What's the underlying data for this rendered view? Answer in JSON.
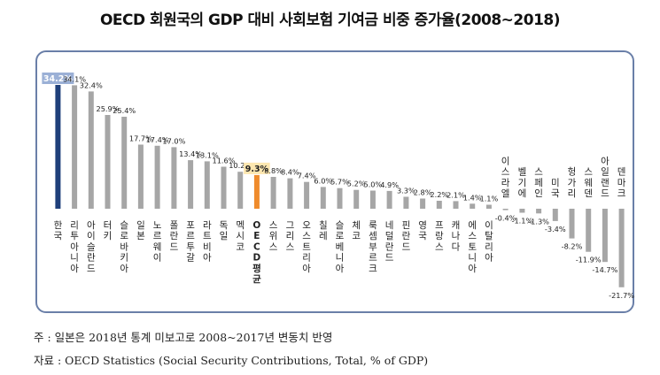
{
  "title": "OECD 회원국의 GDP 대비 사회보험 기여금 비중 증가율(2008~2018)",
  "note": "주 : 일본은 2018년 통계 미보고로 2008~2017년 변동치 반영",
  "source": "자료 : OECD Statistics (Social Security Contributions, Total, % of GDP)",
  "colors": {
    "default_bar": "#a6a6a6",
    "korea_bar": "#1f3f7a",
    "oecd_avg_bar": "#ef8b2c",
    "korea_label_bg": "#9bb0d6",
    "oecd_label_bg": "#fde7b0",
    "frame": "#6a7fa8"
  },
  "chart_data": {
    "type": "bar",
    "title": "OECD 회원국의 GDP 대비 사회보험 기여금 비중 증가율(2008~2018)",
    "xlabel": "",
    "ylabel": "",
    "ylim": [
      -21.7,
      34.2
    ],
    "unit": "%",
    "grid": false,
    "categories": [
      "한국",
      "리투아니아",
      "아이슬란드",
      "터키",
      "슬로바키아",
      "일본",
      "노르웨이",
      "폴란드",
      "포르투갈",
      "라트비아",
      "독일",
      "멕시코",
      "OECD 평균",
      "스위스",
      "그리스",
      "오스트리아",
      "칠레",
      "슬로베니아",
      "체코",
      "룩셈부르크",
      "네덜란드",
      "핀란드",
      "영국",
      "프랑스",
      "캐나다",
      "에스토니아",
      "이탈리아",
      "이스라엘",
      "벨기에",
      "스페인",
      "미국",
      "헝가리",
      "스웨덴",
      "아일랜드",
      "덴마크"
    ],
    "values": [
      34.2,
      34.1,
      32.4,
      25.9,
      25.4,
      17.7,
      17.4,
      17.0,
      13.4,
      13.1,
      11.6,
      10.2,
      9.3,
      8.8,
      8.4,
      7.4,
      6.0,
      5.7,
      5.2,
      5.0,
      4.9,
      3.3,
      2.8,
      2.2,
      2.1,
      1.4,
      1.1,
      -0.4,
      -1.1,
      -1.3,
      -3.4,
      -8.2,
      -11.9,
      -14.7,
      -21.7
    ],
    "value_labels": [
      "34.2%",
      "34.1%",
      "32.4%",
      "25.9%",
      "25.4%",
      "17.7%",
      "17.4%",
      "17.0%",
      "13.4%",
      "13.1%",
      "11.6%",
      "10.2%",
      "9.3%",
      "8.8%",
      "8.4%",
      "7.4%",
      "6.0%",
      "5.7%",
      "5.2%",
      "5.0%",
      "4.9%",
      "3.3%",
      "2.8%",
      "2.2%",
      "2.1%",
      "1.4%",
      "1.1%",
      "-0.4%",
      "-1.1%",
      "-1.3%",
      "-3.4%",
      "-8.2%",
      "-11.9%",
      "-14.7%",
      "-21.7%"
    ],
    "highlight": {
      "한국": "korea",
      "OECD 평균": "oecd_avg"
    }
  }
}
